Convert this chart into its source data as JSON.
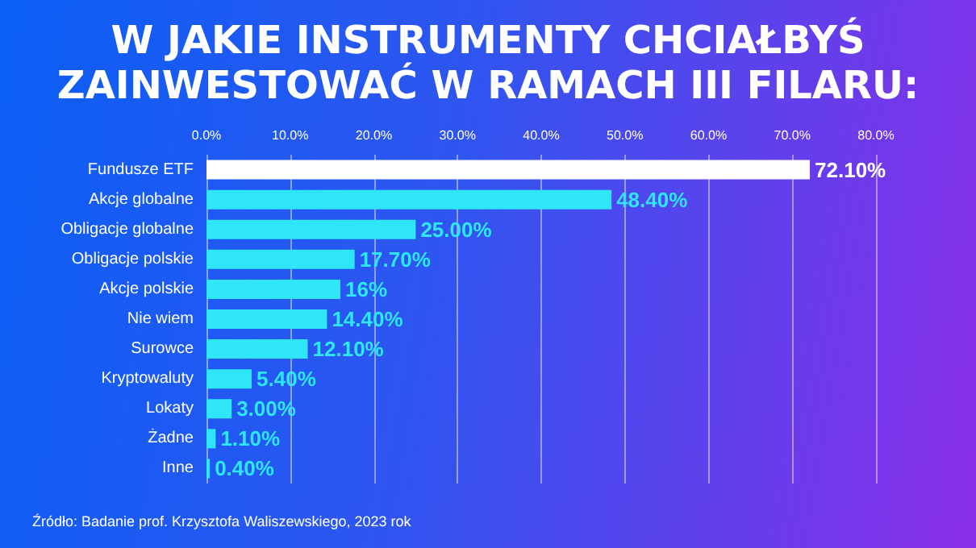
{
  "chart_data": {
    "type": "bar",
    "orientation": "horizontal",
    "title": "W JAKIE INSTRUMENTY CHCIAŁBYŚ\nZAINWESTOWAĆ W RAMACH III FILARU:",
    "categories": [
      "Fundusze ETF",
      "Akcje globalne",
      "Obligacje globalne",
      "Obligacje polskie",
      "Akcje polskie",
      "Nie wiem",
      "Surowce",
      "Kryptowaluty",
      "Lokaty",
      "Żadne",
      "Inne"
    ],
    "values": [
      72.1,
      48.4,
      25.0,
      17.7,
      16,
      14.4,
      12.1,
      5.4,
      3.0,
      1.1,
      0.4
    ],
    "value_labels": [
      "72.10%",
      "48.40%",
      "25.00%",
      "17.70%",
      "16%",
      "14.40%",
      "12.10%",
      "5.40%",
      "3.00%",
      "1.10%",
      "0.40%"
    ],
    "colors": [
      "#ffffff",
      "#2ee6f7",
      "#2ee6f7",
      "#2ee6f7",
      "#2ee6f7",
      "#2ee6f7",
      "#2ee6f7",
      "#2ee6f7",
      "#2ee6f7",
      "#2ee6f7",
      "#2ee6f7"
    ],
    "xlim": [
      0,
      80
    ],
    "xticks": [
      {
        "value": 0,
        "label": "0.0%"
      },
      {
        "value": 10,
        "label": "10.0%"
      },
      {
        "value": 20,
        "label": "20.0%"
      },
      {
        "value": 30,
        "label": "30.0%"
      },
      {
        "value": 40,
        "label": "40.0%"
      },
      {
        "value": 50,
        "label": "50.0%"
      },
      {
        "value": 60,
        "label": "60.0%"
      },
      {
        "value": 70,
        "label": "70.0%"
      },
      {
        "value": 80,
        "label": "80.0%"
      }
    ],
    "grid": "x",
    "annotations": [
      "Źródło: Badanie prof. Krzysztofa Waliszewskiego, 2023 rok"
    ]
  }
}
